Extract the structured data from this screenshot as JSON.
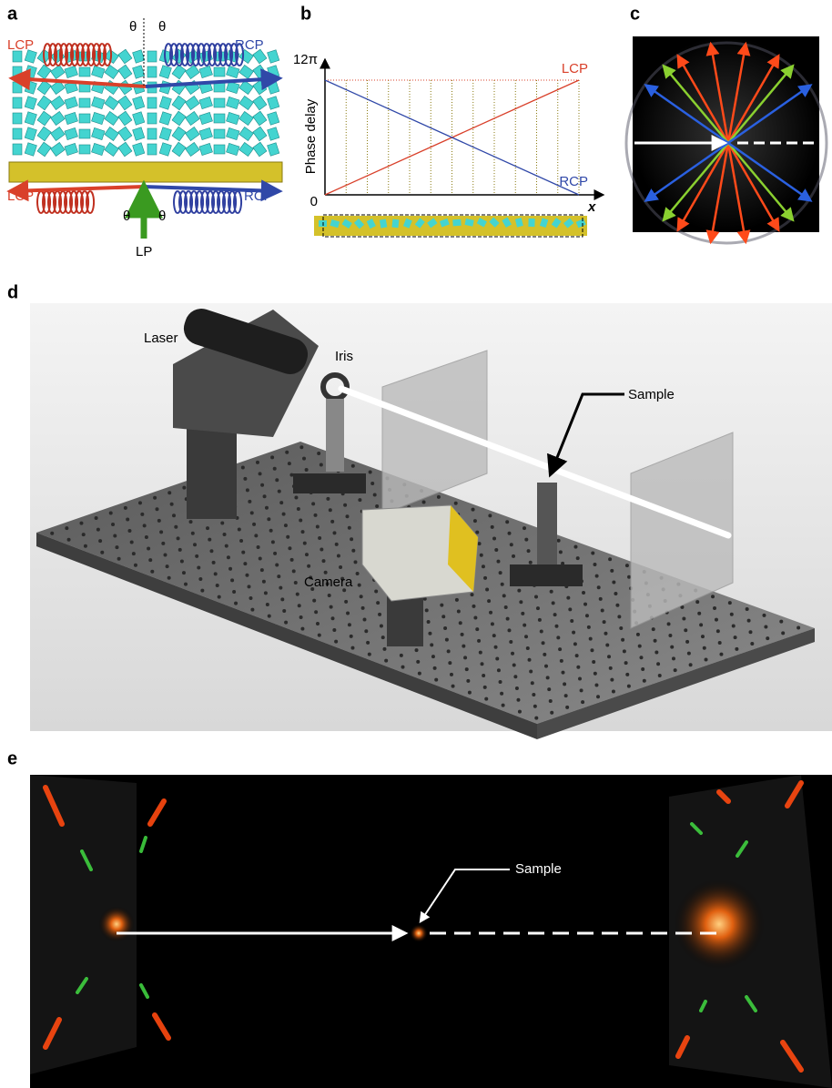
{
  "panel_a": {
    "label": "a",
    "texts": [
      "LCP",
      "θ",
      "θ",
      "RCP",
      "LCP",
      "θ",
      "θ",
      "RCP",
      "LP"
    ]
  },
  "panel_b": {
    "label": "b",
    "chart": {
      "type": "line",
      "ylabel": "Phase delay",
      "xlabel": "x",
      "ylim": [
        0,
        12
      ],
      "yticks": [
        0,
        {
          "value": 12,
          "label": "12π"
        }
      ],
      "series": [
        {
          "name": "LCP",
          "color": "#d9402a",
          "values": [
            0,
            12
          ]
        },
        {
          "name": "RCP",
          "color": "#3048a8",
          "values": [
            12,
            0
          ]
        }
      ]
    }
  },
  "panel_c": {
    "label": "c"
  },
  "panel_d": {
    "label": "d",
    "texts": [
      "Laser",
      "Iris",
      "Sample",
      "Camera"
    ]
  },
  "panel_e": {
    "label": "e",
    "texts": [
      "Sample"
    ]
  }
}
